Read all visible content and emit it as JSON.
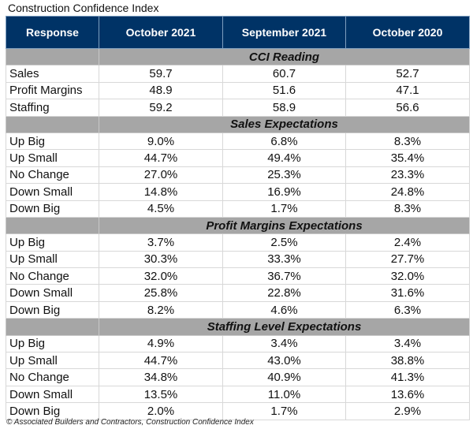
{
  "title": "Construction Confidence Index",
  "headers": [
    "Response",
    "October 2021",
    "September 2021",
    "October 2020"
  ],
  "sections": [
    {
      "name": "CCI Reading",
      "rows": [
        [
          "Sales",
          "59.7",
          "60.7",
          "52.7"
        ],
        [
          "Profit Margins",
          "48.9",
          "51.6",
          "47.1"
        ],
        [
          "Staffing",
          "59.2",
          "58.9",
          "56.6"
        ]
      ]
    },
    {
      "name": "Sales Expectations",
      "rows": [
        [
          "Up Big",
          "9.0%",
          "6.8%",
          "8.3%"
        ],
        [
          "Up Small",
          "44.7%",
          "49.4%",
          "35.4%"
        ],
        [
          "No Change",
          "27.0%",
          "25.3%",
          "23.3%"
        ],
        [
          "Down Small",
          "14.8%",
          "16.9%",
          "24.8%"
        ],
        [
          "Down Big",
          "4.5%",
          "1.7%",
          "8.3%"
        ]
      ]
    },
    {
      "name": "Profit Margins Expectations",
      "rows": [
        [
          "Up Big",
          "3.7%",
          "2.5%",
          "2.4%"
        ],
        [
          "Up Small",
          "30.3%",
          "33.3%",
          "27.7%"
        ],
        [
          "No Change",
          "32.0%",
          "36.7%",
          "32.0%"
        ],
        [
          "Down Small",
          "25.8%",
          "22.8%",
          "31.6%"
        ],
        [
          "Down Big",
          "8.2%",
          "4.6%",
          "6.3%"
        ]
      ]
    },
    {
      "name": "Staffing Level Expectations",
      "rows": [
        [
          "Up Big",
          "4.9%",
          "3.4%",
          "3.4%"
        ],
        [
          "Up Small",
          "44.7%",
          "43.0%",
          "38.8%"
        ],
        [
          "No Change",
          "34.8%",
          "40.9%",
          "41.3%"
        ],
        [
          "Down Small",
          "13.5%",
          "11.0%",
          "13.6%"
        ],
        [
          "Down Big",
          "2.0%",
          "1.7%",
          "2.9%"
        ]
      ]
    }
  ],
  "footer": "© Associated Builders and Contractors, Construction Confidence Index",
  "colors": {
    "header": "#003366",
    "section": "#a6a6a6"
  }
}
